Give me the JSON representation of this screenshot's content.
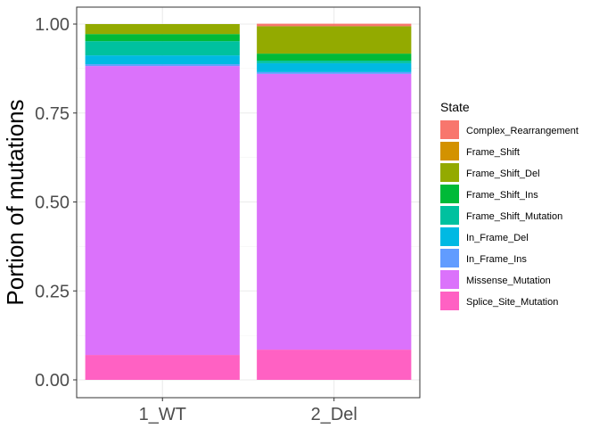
{
  "chart_data": {
    "type": "bar",
    "stacked": true,
    "categories": [
      "1_WT",
      "2_Del"
    ],
    "xlabel": "",
    "ylabel": "Portion of mutations",
    "ylim": [
      0,
      1.0
    ],
    "yticks": [
      "0.00",
      "0.25",
      "0.50",
      "0.75",
      "1.00"
    ],
    "grid": true,
    "legend": {
      "title": "State",
      "position": "right"
    },
    "series": [
      {
        "name": "Complex_Rearrangement",
        "color": "#F8766D",
        "values": [
          0.0,
          0.007
        ]
      },
      {
        "name": "Frame_Shift",
        "color": "#D39200",
        "values": [
          0.0,
          0.0
        ]
      },
      {
        "name": "Frame_Shift_Del",
        "color": "#93AA00",
        "values": [
          0.028,
          0.077
        ]
      },
      {
        "name": "Frame_Shift_Ins",
        "color": "#00BA38",
        "values": [
          0.02,
          0.02
        ]
      },
      {
        "name": "Frame_Shift_Mutation",
        "color": "#00C19F",
        "values": [
          0.04,
          0.007
        ]
      },
      {
        "name": "In_Frame_Del",
        "color": "#00B9E3",
        "values": [
          0.025,
          0.025
        ]
      },
      {
        "name": "In_Frame_Ins",
        "color": "#619CFF",
        "values": [
          0.005,
          0.005
        ]
      },
      {
        "name": "Missense_Mutation",
        "color": "#DB72FB",
        "values": [
          0.812,
          0.775
        ]
      },
      {
        "name": "Splice_Site_Mutation",
        "color": "#FF61C3",
        "values": [
          0.07,
          0.085
        ]
      }
    ]
  }
}
